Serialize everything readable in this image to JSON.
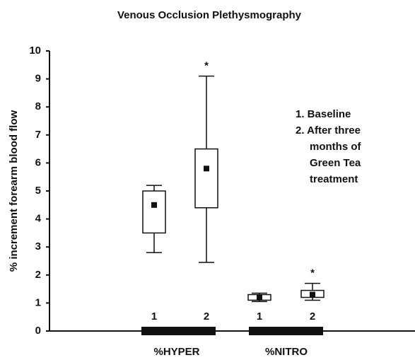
{
  "chart_data": {
    "type": "box",
    "title": "Venous Occlusion Plethysmography",
    "ylabel": "% increment forearm blood flow",
    "ylim": [
      0,
      10
    ],
    "yticks": [
      0,
      1,
      2,
      3,
      4,
      5,
      6,
      7,
      8,
      9,
      10
    ],
    "groups": [
      {
        "name": "%HYPER",
        "boxes": [
          {
            "label": "1",
            "low": 2.8,
            "q1": 3.5,
            "mean": 4.5,
            "q3": 5.0,
            "high": 5.2
          },
          {
            "label": "2",
            "low": 2.45,
            "q1": 4.4,
            "mean": 5.8,
            "q3": 6.5,
            "high": 9.1,
            "annotation": "*"
          }
        ]
      },
      {
        "name": "%NITRO",
        "boxes": [
          {
            "label": "1",
            "low": 1.05,
            "q1": 1.1,
            "mean": 1.2,
            "q3": 1.3,
            "high": 1.35
          },
          {
            "label": "2",
            "low": 1.1,
            "q1": 1.2,
            "mean": 1.3,
            "q3": 1.45,
            "high": 1.7,
            "annotation": "*"
          }
        ]
      }
    ],
    "legend_lines": [
      "1. Baseline",
      "2. After three",
      "months of",
      "Green Tea",
      "treatment"
    ]
  }
}
